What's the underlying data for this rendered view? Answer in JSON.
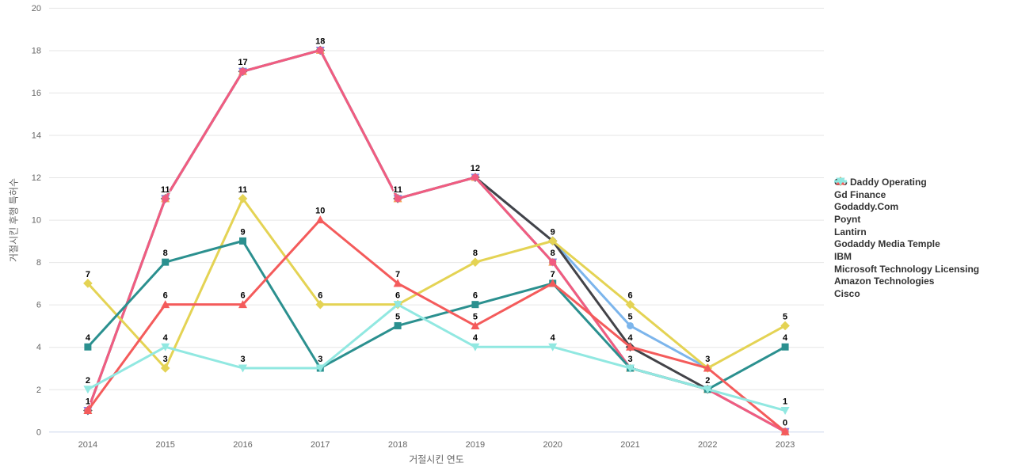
{
  "chart_data": {
    "type": "line",
    "title": "",
    "xlabel": "거절시킨 연도",
    "ylabel": "거절시킨 후행 특허수",
    "categories": [
      "2014",
      "2015",
      "2016",
      "2017",
      "2018",
      "2019",
      "2020",
      "2021",
      "2022",
      "2023"
    ],
    "ylim": [
      0,
      20
    ],
    "ytick_interval": 2,
    "grid": true,
    "legend_position": "right",
    "series": [
      {
        "name": "Go Daddy Operating",
        "color": "#7cb5ec",
        "symbol": "circle",
        "values": [
          1,
          11,
          17,
          18,
          11,
          12,
          9,
          5,
          3,
          null
        ]
      },
      {
        "name": "Gd Finance",
        "color": "#434348",
        "symbol": "diamond",
        "values": [
          1,
          11,
          17,
          18,
          11,
          12,
          9,
          4,
          2,
          null
        ]
      },
      {
        "name": "Godaddy.Com",
        "color": "#90ed7d",
        "symbol": "square",
        "values": [
          1,
          11,
          17,
          18,
          11,
          12,
          8,
          3,
          2,
          0
        ]
      },
      {
        "name": "Poynt",
        "color": "#f7a35c",
        "symbol": "triangle",
        "values": [
          1,
          11,
          17,
          18,
          11,
          12,
          8,
          3,
          2,
          0
        ]
      },
      {
        "name": "Lantirn",
        "color": "#8085e9",
        "symbol": "triangle-down",
        "values": [
          1,
          11,
          17,
          18,
          11,
          12,
          8,
          3,
          2,
          0
        ]
      },
      {
        "name": "Godaddy Media Temple",
        "color": "#f15c80",
        "symbol": "circle",
        "values": [
          1,
          11,
          17,
          18,
          11,
          12,
          8,
          3,
          2,
          0
        ]
      },
      {
        "name": "IBM",
        "color": "#e4d354",
        "symbol": "diamond",
        "values": [
          7,
          3,
          11,
          6,
          6,
          8,
          9,
          6,
          3,
          5
        ]
      },
      {
        "name": "Microsoft Technology Licensing",
        "color": "#2b908f",
        "symbol": "square",
        "values": [
          4,
          8,
          9,
          3,
          5,
          6,
          7,
          3,
          2,
          4
        ]
      },
      {
        "name": "Amazon Technologies",
        "color": "#f45b5b",
        "symbol": "triangle",
        "values": [
          1,
          6,
          6,
          10,
          7,
          5,
          7,
          4,
          3,
          0
        ]
      },
      {
        "name": "Cisco",
        "color": "#91e8e1",
        "symbol": "triangle-down",
        "values": [
          2,
          4,
          3,
          3,
          6,
          4,
          4,
          3,
          2,
          1
        ]
      }
    ],
    "colors": {
      "gridline": "#e6e6e6",
      "axis_line": "#ccd6eb",
      "tick_label": "#666666",
      "legend_text": "#333333",
      "data_label": "#000000"
    }
  }
}
